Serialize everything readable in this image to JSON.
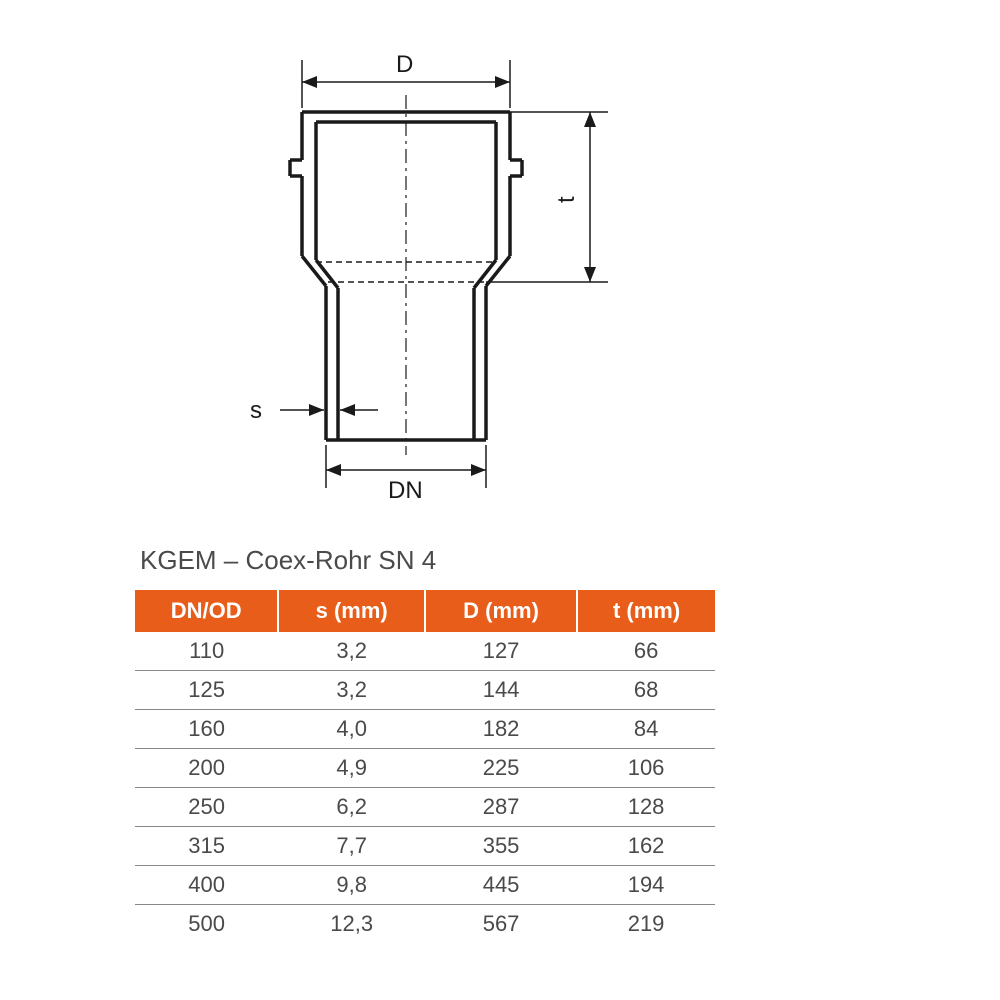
{
  "diagram": {
    "labels": {
      "D": "D",
      "t": "t",
      "s": "s",
      "DN": "DN"
    },
    "stroke_color": "#1a1a1a",
    "stroke_width_main": 3.5,
    "stroke_width_dim": 1.5,
    "dash_pattern": "10 4 2 4"
  },
  "title": "KGEM – Coex-Rohr SN 4",
  "table": {
    "header_bg": "#e85d1a",
    "header_fg": "#ffffff",
    "cell_fg": "#4a4a4a",
    "border_color": "#888888",
    "columns": [
      "DN/OD",
      "s (mm)",
      "D (mm)",
      "t (mm)"
    ],
    "rows": [
      [
        "110",
        "3,2",
        "127",
        "66"
      ],
      [
        "125",
        "3,2",
        "144",
        "68"
      ],
      [
        "160",
        "4,0",
        "182",
        "84"
      ],
      [
        "200",
        "4,9",
        "225",
        "106"
      ],
      [
        "250",
        "6,2",
        "287",
        "128"
      ],
      [
        "315",
        "7,7",
        "355",
        "162"
      ],
      [
        "400",
        "9,8",
        "445",
        "194"
      ],
      [
        "500",
        "12,3",
        "567",
        "219"
      ]
    ]
  }
}
